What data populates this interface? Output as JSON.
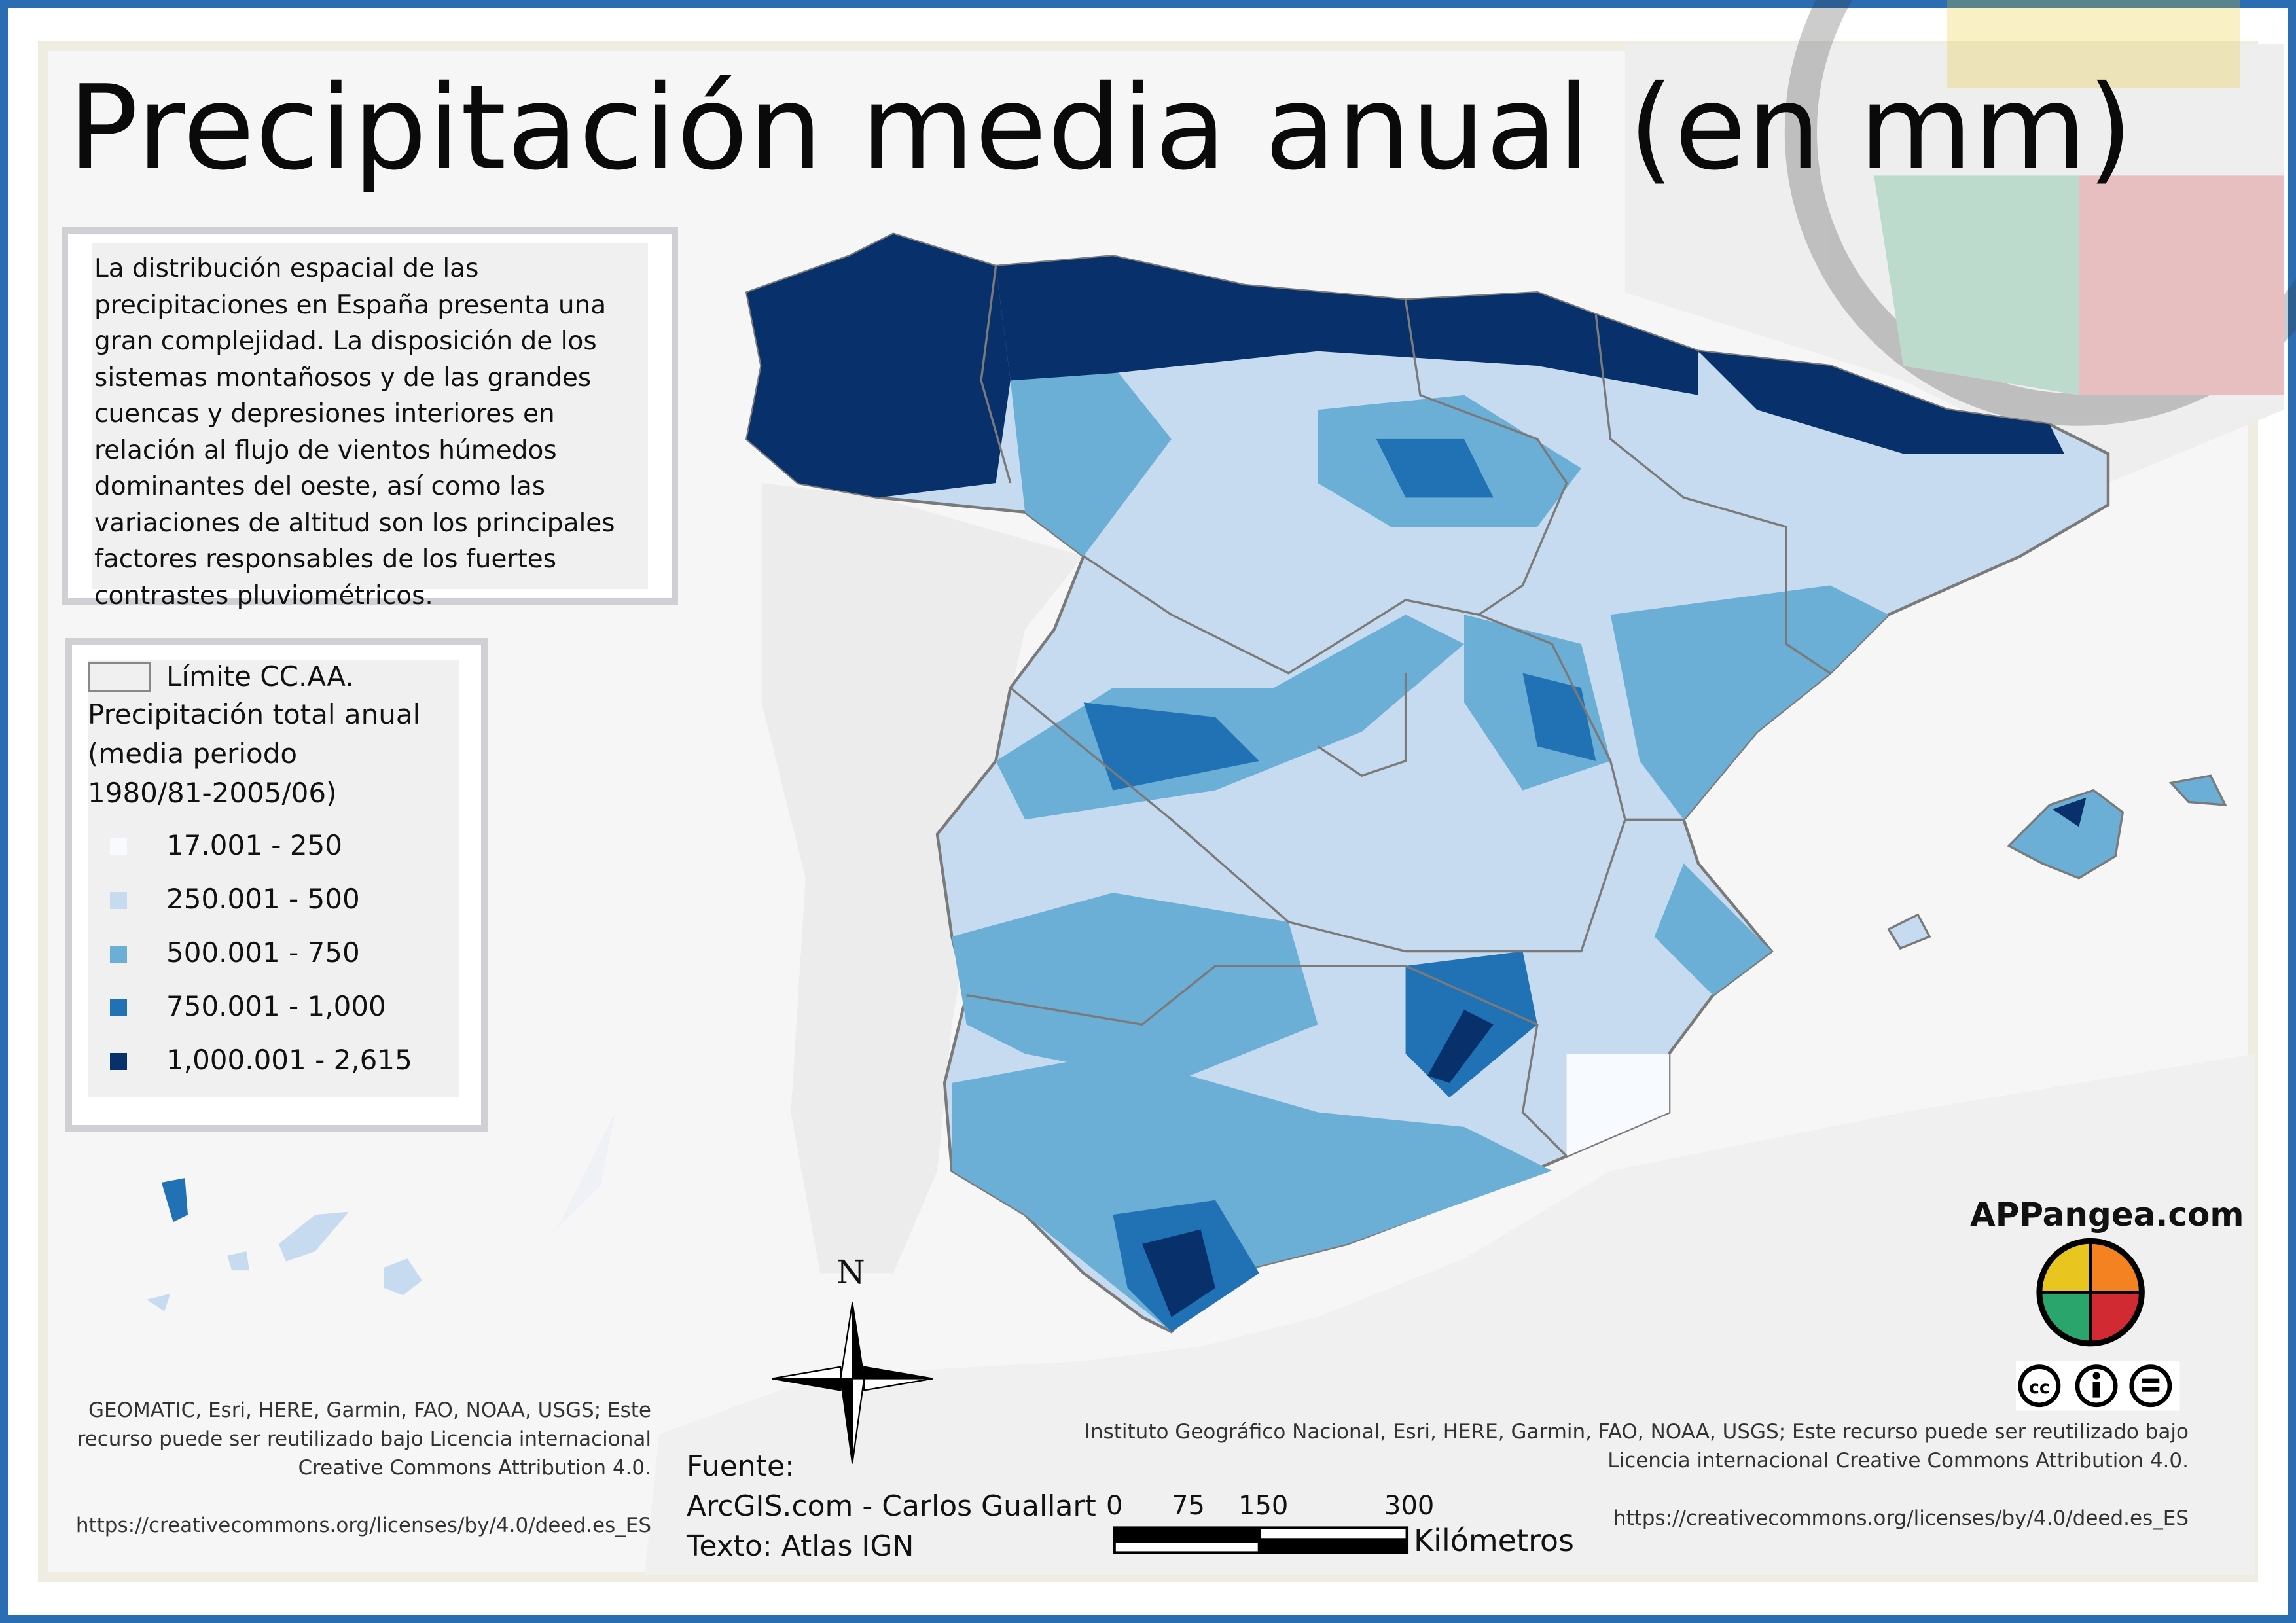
{
  "title": "Precipitación media anual (en mm)",
  "description": "La distribución espacial de las precipitaciones en España presenta una gran complejidad. La disposición de los sistemas montañosos y de las grandes cuencas y depresiones interiores en relación al flujo de vientos húmedos dominantes del oeste, así como las variaciones de altitud son los principales factores responsables de los fuertes contrastes pluviométricos.",
  "legend": {
    "boundary_label": "Límite CC.AA.",
    "heading_lines": [
      "Precipitación total anual",
      "(media periodo",
      "1980/81-2005/06)"
    ],
    "classes": [
      {
        "label": "17.001 - 250",
        "color": "#f7fbff"
      },
      {
        "label": "250.001 - 500",
        "color": "#c6dbef"
      },
      {
        "label": "500.001 - 750",
        "color": "#6baed6"
      },
      {
        "label": "750.001 - 1,000",
        "color": "#2171b5"
      },
      {
        "label": "1,000.001 - 2,615",
        "color": "#08306b"
      }
    ]
  },
  "credits_left": [
    "GEOMATIC, Esri, HERE, Garmin, FAO, NOAA, USGS; Este",
    "recurso puede ser reutilizado bajo Licencia internacional",
    "Creative Commons Attribution 4.0.",
    "https://creativecommons.org/licenses/by/4.0/deed.es_ES"
  ],
  "credits_right": [
    "Instituto Geográfico Nacional, Esri, HERE, Garmin, FAO, NOAA, USGS; Este recurso puede ser reutilizado bajo",
    "Licencia internacional Creative Commons Attribution 4.0.",
    "https://creativecommons.org/licenses/by/4.0/deed.es_ES"
  ],
  "source": [
    "Fuente:",
    "ArcGIS.com - Carlos Guallart",
    "Texto: Atlas IGN"
  ],
  "north_label": "N",
  "scale": {
    "ticks": [
      "0",
      "75",
      "150",
      "300"
    ],
    "unit": "Kilómetros"
  },
  "brand": "APPangea.com",
  "license_icons": [
    "cc-icon",
    "attribution-icon",
    "no-derivatives-icon"
  ],
  "colors": {
    "frame": "#2a6db3",
    "boundary": "#7a7a7a"
  }
}
